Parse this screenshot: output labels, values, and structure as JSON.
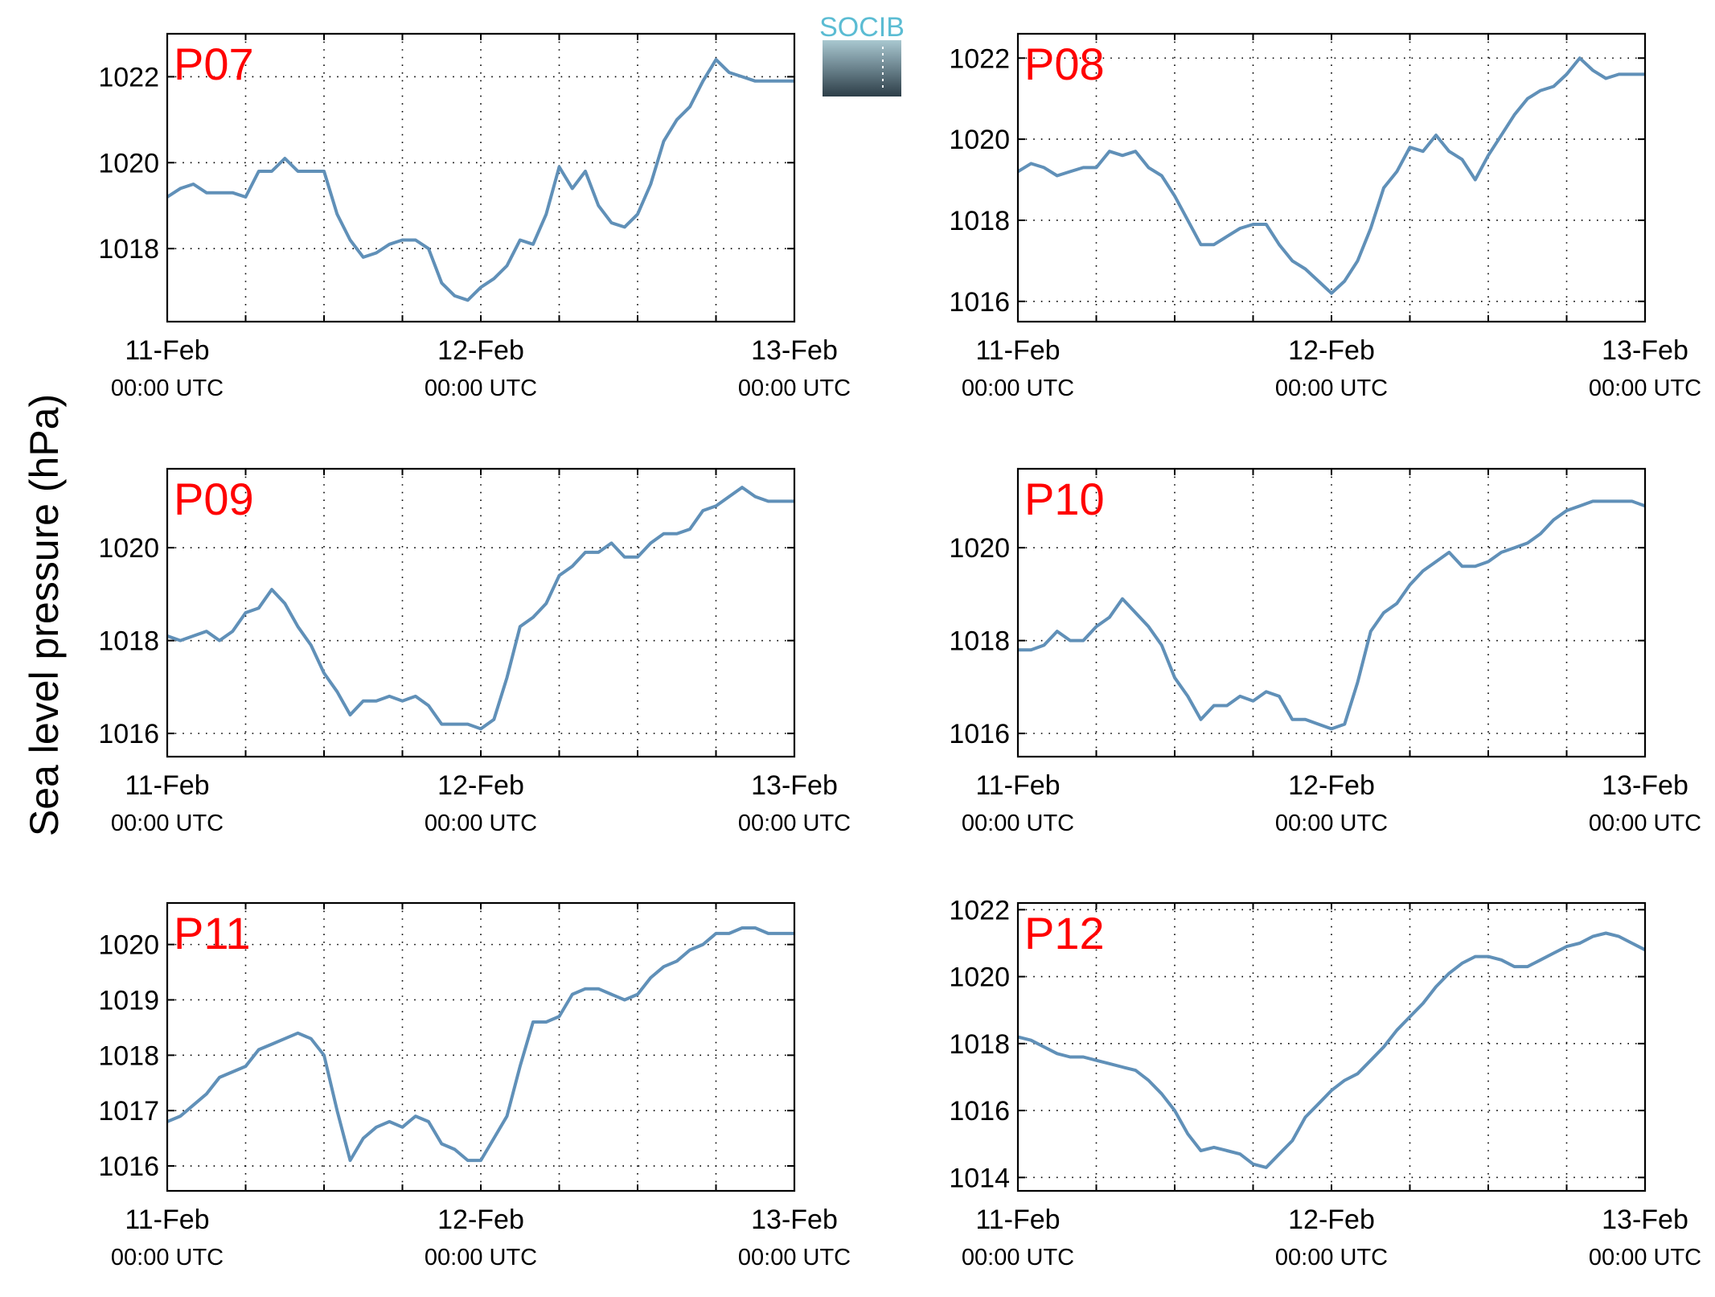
{
  "figure": {
    "ylabel": "Sea level pressure (hPa)",
    "logo_text": "SOCIB",
    "line_color": "#6090b8",
    "title_color": "#ff0000"
  },
  "chart_data": [
    {
      "type": "line",
      "title": "P07",
      "x_ticks": [
        {
          "date": "11-Feb",
          "time": "00:00 UTC"
        },
        {
          "date": "12-Feb",
          "time": "00:00 UTC"
        },
        {
          "date": "13-Feb",
          "time": "00:00 UTC"
        }
      ],
      "x_unit": "hours since 11-Feb 00:00 UTC",
      "xlim": [
        0,
        48
      ],
      "ylim": [
        1016.3,
        1023.0
      ],
      "y_ticks": [
        1018,
        1020,
        1022
      ],
      "grid": true,
      "x": [
        0,
        1,
        2,
        3,
        4,
        5,
        6,
        7,
        8,
        9,
        10,
        11,
        12,
        13,
        14,
        15,
        16,
        17,
        18,
        19,
        20,
        21,
        22,
        23,
        24,
        25,
        26,
        27,
        28,
        29,
        30,
        31,
        32,
        33,
        34,
        35,
        36,
        37,
        38,
        39,
        40,
        41,
        42,
        43,
        44,
        45,
        46,
        47,
        48
      ],
      "y": [
        1019.2,
        1019.4,
        1019.5,
        1019.3,
        1019.3,
        1019.3,
        1019.2,
        1019.8,
        1019.8,
        1020.1,
        1019.8,
        1019.8,
        1019.8,
        1018.8,
        1018.2,
        1017.8,
        1017.9,
        1018.1,
        1018.2,
        1018.2,
        1018.0,
        1017.2,
        1016.9,
        1016.8,
        1017.1,
        1017.3,
        1017.6,
        1018.2,
        1018.1,
        1018.8,
        1019.9,
        1019.4,
        1019.8,
        1019.0,
        1018.6,
        1018.5,
        1018.8,
        1019.5,
        1020.5,
        1021.0,
        1021.3,
        1021.9,
        1022.4,
        1022.1,
        1022.0,
        1021.9,
        1021.9,
        1021.9,
        1021.9
      ]
    },
    {
      "type": "line",
      "title": "P08",
      "x_ticks": [
        {
          "date": "11-Feb",
          "time": "00:00 UTC"
        },
        {
          "date": "12-Feb",
          "time": "00:00 UTC"
        },
        {
          "date": "13-Feb",
          "time": "00:00 UTC"
        }
      ],
      "x_unit": "hours since 11-Feb 00:00 UTC",
      "xlim": [
        0,
        48
      ],
      "ylim": [
        1015.5,
        1022.6
      ],
      "y_ticks": [
        1016,
        1018,
        1020,
        1022
      ],
      "grid": true,
      "x": [
        0,
        1,
        2,
        3,
        4,
        5,
        6,
        7,
        8,
        9,
        10,
        11,
        12,
        13,
        14,
        15,
        16,
        17,
        18,
        19,
        20,
        21,
        22,
        23,
        24,
        25,
        26,
        27,
        28,
        29,
        30,
        31,
        32,
        33,
        34,
        35,
        36,
        37,
        38,
        39,
        40,
        41,
        42,
        43,
        44,
        45,
        46,
        47,
        48
      ],
      "y": [
        1019.2,
        1019.4,
        1019.3,
        1019.1,
        1019.2,
        1019.3,
        1019.3,
        1019.7,
        1019.6,
        1019.7,
        1019.3,
        1019.1,
        1018.6,
        1018.0,
        1017.4,
        1017.4,
        1017.6,
        1017.8,
        1017.9,
        1017.9,
        1017.4,
        1017.0,
        1016.8,
        1016.5,
        1016.2,
        1016.5,
        1017.0,
        1017.8,
        1018.8,
        1019.2,
        1019.8,
        1019.7,
        1020.1,
        1019.7,
        1019.5,
        1019.0,
        1019.6,
        1020.1,
        1020.6,
        1021.0,
        1021.2,
        1021.3,
        1021.6,
        1022.0,
        1021.7,
        1021.5,
        1021.6,
        1021.6,
        1021.6
      ]
    },
    {
      "type": "line",
      "title": "P09",
      "x_ticks": [
        {
          "date": "11-Feb",
          "time": "00:00 UTC"
        },
        {
          "date": "12-Feb",
          "time": "00:00 UTC"
        },
        {
          "date": "13-Feb",
          "time": "00:00 UTC"
        }
      ],
      "x_unit": "hours since 11-Feb 00:00 UTC",
      "xlim": [
        0,
        48
      ],
      "ylim": [
        1015.5,
        1021.7
      ],
      "y_ticks": [
        1016,
        1018,
        1020
      ],
      "grid": true,
      "x": [
        0,
        1,
        2,
        3,
        4,
        5,
        6,
        7,
        8,
        9,
        10,
        11,
        12,
        13,
        14,
        15,
        16,
        17,
        18,
        19,
        20,
        21,
        22,
        23,
        24,
        25,
        26,
        27,
        28,
        29,
        30,
        31,
        32,
        33,
        34,
        35,
        36,
        37,
        38,
        39,
        40,
        41,
        42,
        43,
        44,
        45,
        46,
        47,
        48
      ],
      "y": [
        1018.1,
        1018.0,
        1018.1,
        1018.2,
        1018.0,
        1018.2,
        1018.6,
        1018.7,
        1019.1,
        1018.8,
        1018.3,
        1017.9,
        1017.3,
        1016.9,
        1016.4,
        1016.7,
        1016.7,
        1016.8,
        1016.7,
        1016.8,
        1016.6,
        1016.2,
        1016.2,
        1016.2,
        1016.1,
        1016.3,
        1017.2,
        1018.3,
        1018.5,
        1018.8,
        1019.4,
        1019.6,
        1019.9,
        1019.9,
        1020.1,
        1019.8,
        1019.8,
        1020.1,
        1020.3,
        1020.3,
        1020.4,
        1020.8,
        1020.9,
        1021.1,
        1021.3,
        1021.1,
        1021.0,
        1021.0,
        1021.0
      ]
    },
    {
      "type": "line",
      "title": "P10",
      "x_ticks": [
        {
          "date": "11-Feb",
          "time": "00:00 UTC"
        },
        {
          "date": "12-Feb",
          "time": "00:00 UTC"
        },
        {
          "date": "13-Feb",
          "time": "00:00 UTC"
        }
      ],
      "x_unit": "hours since 11-Feb 00:00 UTC",
      "xlim": [
        0,
        48
      ],
      "ylim": [
        1015.5,
        1021.7
      ],
      "y_ticks": [
        1016,
        1018,
        1020
      ],
      "grid": true,
      "x": [
        0,
        1,
        2,
        3,
        4,
        5,
        6,
        7,
        8,
        9,
        10,
        11,
        12,
        13,
        14,
        15,
        16,
        17,
        18,
        19,
        20,
        21,
        22,
        23,
        24,
        25,
        26,
        27,
        28,
        29,
        30,
        31,
        32,
        33,
        34,
        35,
        36,
        37,
        38,
        39,
        40,
        41,
        42,
        43,
        44,
        45,
        46,
        47,
        48
      ],
      "y": [
        1017.8,
        1017.8,
        1017.9,
        1018.2,
        1018.0,
        1018.0,
        1018.3,
        1018.5,
        1018.9,
        1018.6,
        1018.3,
        1017.9,
        1017.2,
        1016.8,
        1016.3,
        1016.6,
        1016.6,
        1016.8,
        1016.7,
        1016.9,
        1016.8,
        1016.3,
        1016.3,
        1016.2,
        1016.1,
        1016.2,
        1017.1,
        1018.2,
        1018.6,
        1018.8,
        1019.2,
        1019.5,
        1019.7,
        1019.9,
        1019.6,
        1019.6,
        1019.7,
        1019.9,
        1020.0,
        1020.1,
        1020.3,
        1020.6,
        1020.8,
        1020.9,
        1021.0,
        1021.0,
        1021.0,
        1021.0,
        1020.9
      ]
    },
    {
      "type": "line",
      "title": "P11",
      "x_ticks": [
        {
          "date": "11-Feb",
          "time": "00:00 UTC"
        },
        {
          "date": "12-Feb",
          "time": "00:00 UTC"
        },
        {
          "date": "13-Feb",
          "time": "00:00 UTC"
        }
      ],
      "x_unit": "hours since 11-Feb 00:00 UTC",
      "xlim": [
        0,
        48
      ],
      "ylim": [
        1015.55,
        1020.75
      ],
      "y_ticks": [
        1016,
        1017,
        1018,
        1019,
        1020
      ],
      "grid": true,
      "x": [
        0,
        1,
        2,
        3,
        4,
        5,
        6,
        7,
        8,
        9,
        10,
        11,
        12,
        13,
        14,
        15,
        16,
        17,
        18,
        19,
        20,
        21,
        22,
        23,
        24,
        25,
        26,
        27,
        28,
        29,
        30,
        31,
        32,
        33,
        34,
        35,
        36,
        37,
        38,
        39,
        40,
        41,
        42,
        43,
        44,
        45,
        46,
        47,
        48
      ],
      "y": [
        1016.8,
        1016.9,
        1017.1,
        1017.3,
        1017.6,
        1017.7,
        1017.8,
        1018.1,
        1018.2,
        1018.3,
        1018.4,
        1018.3,
        1018.0,
        1017.0,
        1016.1,
        1016.5,
        1016.7,
        1016.8,
        1016.7,
        1016.9,
        1016.8,
        1016.4,
        1016.3,
        1016.1,
        1016.1,
        1016.5,
        1016.9,
        1017.8,
        1018.6,
        1018.6,
        1018.7,
        1019.1,
        1019.2,
        1019.2,
        1019.1,
        1019.0,
        1019.1,
        1019.4,
        1019.6,
        1019.7,
        1019.9,
        1020.0,
        1020.2,
        1020.2,
        1020.3,
        1020.3,
        1020.2,
        1020.2,
        1020.2
      ]
    },
    {
      "type": "line",
      "title": "P12",
      "x_ticks": [
        {
          "date": "11-Feb",
          "time": "00:00 UTC"
        },
        {
          "date": "12-Feb",
          "time": "00:00 UTC"
        },
        {
          "date": "13-Feb",
          "time": "00:00 UTC"
        }
      ],
      "x_unit": "hours since 11-Feb 00:00 UTC",
      "xlim": [
        0,
        48
      ],
      "ylim": [
        1013.6,
        1022.2
      ],
      "y_ticks": [
        1014,
        1016,
        1018,
        1020,
        1022
      ],
      "grid": true,
      "x": [
        0,
        1,
        2,
        3,
        4,
        5,
        6,
        7,
        8,
        9,
        10,
        11,
        12,
        13,
        14,
        15,
        16,
        17,
        18,
        19,
        20,
        21,
        22,
        23,
        24,
        25,
        26,
        27,
        28,
        29,
        30,
        31,
        32,
        33,
        34,
        35,
        36,
        37,
        38,
        39,
        40,
        41,
        42,
        43,
        44,
        45,
        46,
        47,
        48
      ],
      "y": [
        1018.2,
        1018.1,
        1017.9,
        1017.7,
        1017.6,
        1017.6,
        1017.5,
        1017.4,
        1017.3,
        1017.2,
        1016.9,
        1016.5,
        1016.0,
        1015.3,
        1014.8,
        1014.9,
        1014.8,
        1014.7,
        1014.4,
        1014.3,
        1014.7,
        1015.1,
        1015.8,
        1016.2,
        1016.6,
        1016.9,
        1017.1,
        1017.5,
        1017.9,
        1018.4,
        1018.8,
        1019.2,
        1019.7,
        1020.1,
        1020.4,
        1020.6,
        1020.6,
        1020.5,
        1020.3,
        1020.3,
        1020.5,
        1020.7,
        1020.9,
        1021.0,
        1021.2,
        1021.3,
        1021.2,
        1021.0,
        1020.8
      ]
    }
  ]
}
